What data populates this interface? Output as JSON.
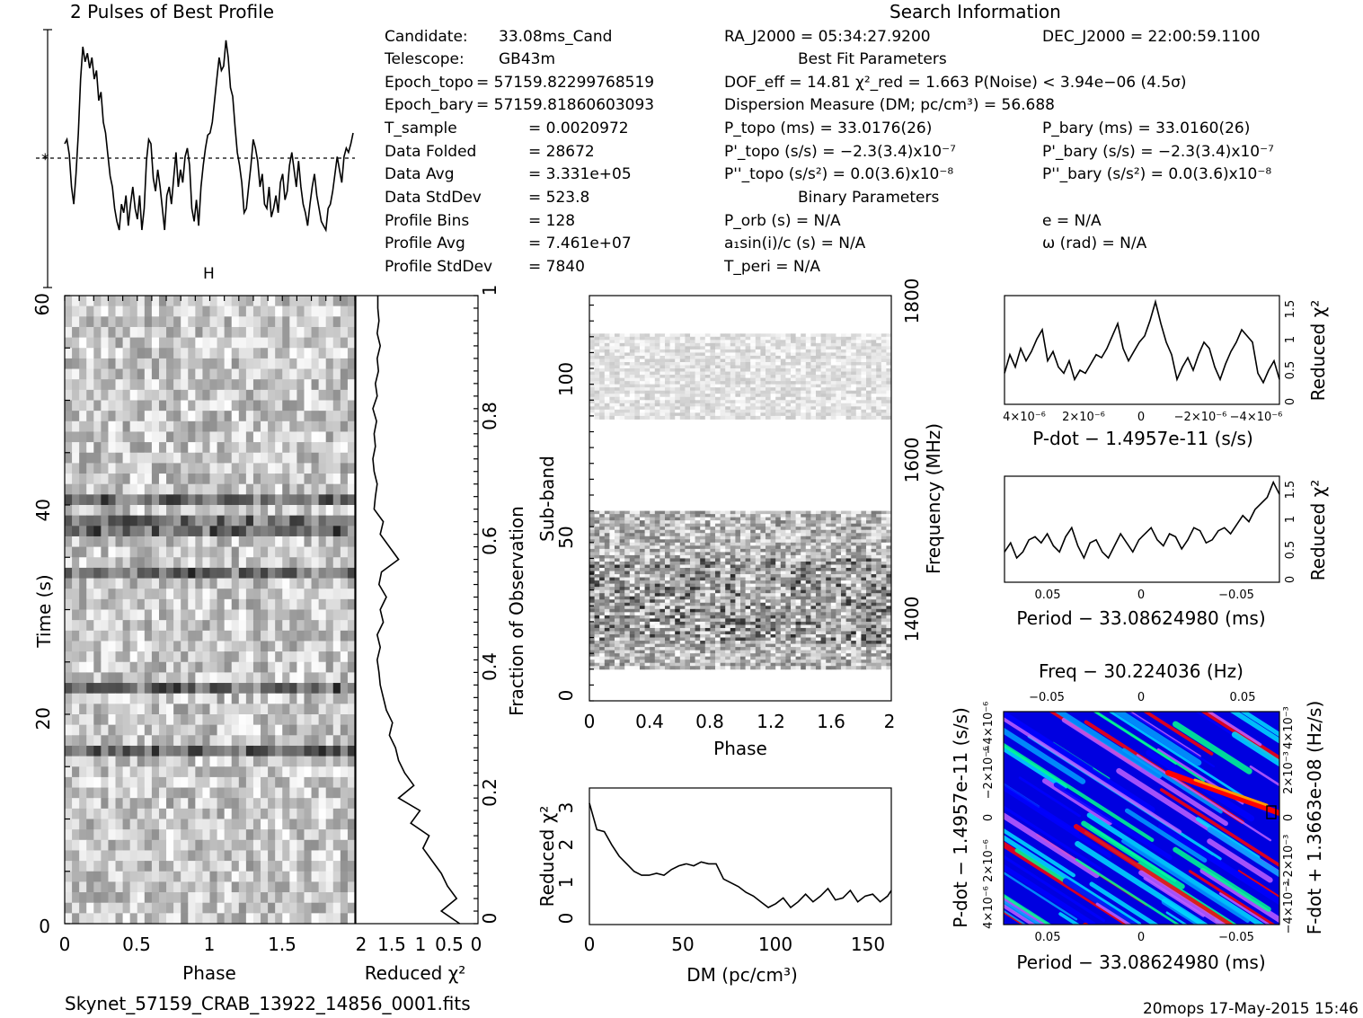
{
  "title": "2 Pulses of Best Profile",
  "search_title": "Search Information",
  "footer": {
    "filename": "Skynet_57159_CRAB_13922_14856_0001.fits",
    "stamp": "20mops 17-May-2015 15:46"
  },
  "info_col1": [
    {
      "k": "Candidate:",
      "v": "33.08ms_Cand"
    },
    {
      "k": "Telescope:",
      "v": "GB43m"
    },
    {
      "k": "Epoch_topo",
      "v": "= 57159.82299768519"
    },
    {
      "k": "Epoch_bary",
      "v": "= 57159.81860603093"
    },
    {
      "k": "T_sample",
      "v": "= 0.0020972"
    },
    {
      "k": "Data Folded",
      "v": "= 28672"
    },
    {
      "k": "Data Avg",
      "v": "= 3.331e+05"
    },
    {
      "k": "Data StdDev",
      "v": "= 523.8"
    },
    {
      "k": "Profile Bins",
      "v": "= 128"
    },
    {
      "k": "Profile Avg",
      "v": "= 7.461e+07"
    },
    {
      "k": "Profile StdDev",
      "v": "= 7840"
    }
  ],
  "info_col2": [
    "RA_J2000 = 05:34:27.9200",
    "Best Fit Parameters",
    "DOF_eff = 14.81  χ²_red = 1.663  P(Noise) < 3.94e−06  (4.5σ)",
    "Dispersion Measure (DM; pc/cm³) = 56.688",
    "P_topo (ms) = 33.0176(26)",
    "P'_topo (s/s) = −2.3(3.4)x10⁻⁷",
    "P''_topo (s/s²) = 0.0(3.6)x10⁻⁸",
    "Binary Parameters",
    "P_orb (s) = N/A",
    "a₁sin(i)/c (s) = N/A",
    "T_peri = N/A"
  ],
  "info_col3": [
    "DEC_J2000 = 22:00:59.1100",
    "P_bary (ms) = 33.0160(26)",
    "P'_bary (s/s) = −2.3(3.4)x10⁻⁷",
    "P''_bary (s/s²) = 0.0(3.6)x10⁻⁸",
    "e = N/A",
    "ω (rad) = N/A"
  ],
  "chart_data": [
    {
      "id": "profile",
      "type": "line",
      "title": "2 Pulses of Best Profile",
      "xlim": [
        0,
        2
      ],
      "y": [
        0.5,
        0.52,
        0.45,
        0.3,
        0.22,
        0.36,
        0.55,
        0.8,
        0.95,
        0.88,
        0.92,
        0.85,
        0.9,
        0.8,
        0.84,
        0.7,
        0.74,
        0.6,
        0.55,
        0.45,
        0.35,
        0.3,
        0.2,
        0.14,
        0.1,
        0.22,
        0.18,
        0.26,
        0.12,
        0.22,
        0.3,
        0.2,
        0.15,
        0.26,
        0.1,
        0.2,
        0.42,
        0.52,
        0.5,
        0.34,
        0.28,
        0.38,
        0.3,
        0.2,
        0.1,
        0.26,
        0.3,
        0.22,
        0.34,
        0.46,
        0.3,
        0.38,
        0.32,
        0.44,
        0.48,
        0.4,
        0.2,
        0.14,
        0.24,
        0.12,
        0.3,
        0.4,
        0.48,
        0.54,
        0.55,
        0.6,
        0.7,
        0.8,
        0.9,
        0.84,
        0.86,
        0.98,
        0.9,
        0.76,
        0.72,
        0.58,
        0.46,
        0.4,
        0.32,
        0.18,
        0.2,
        0.3,
        0.4,
        0.52,
        0.48,
        0.42,
        0.3,
        0.36,
        0.22,
        0.2,
        0.3,
        0.16,
        0.2,
        0.26,
        0.18,
        0.32,
        0.36,
        0.24,
        0.28,
        0.4,
        0.46,
        0.38,
        0.3,
        0.42,
        0.3,
        0.22,
        0.18,
        0.12,
        0.22,
        0.3,
        0.36,
        0.26,
        0.2,
        0.14,
        0.12,
        0.1,
        0.2,
        0.22,
        0.28,
        0.36,
        0.44,
        0.38,
        0.32,
        0.44,
        0.48,
        0.46,
        0.5,
        0.55
      ]
    },
    {
      "id": "time-phase",
      "type": "heatmap",
      "xlabel": "Phase",
      "ylabel": "Time (s)",
      "xlim": [
        0,
        2
      ],
      "ylim": [
        0,
        60
      ],
      "x_ticks": [
        "0",
        "0.5",
        "1",
        "1.5"
      ],
      "y_ticks": [
        "0",
        "20",
        "40",
        "60"
      ],
      "dark_rows_time_s": [
        22.7,
        33.4,
        38.0,
        40.5,
        16.5
      ]
    },
    {
      "id": "time-chi2",
      "type": "line",
      "xlabel": "Reduced χ²",
      "ylabel": "Fraction of Observation",
      "x_ticks": [
        "2",
        "1.5",
        "1",
        "0.5",
        "0"
      ],
      "y_ticks": [
        "0",
        "0.2",
        "0.4",
        "0.6",
        "0.8",
        "1"
      ],
      "xlim": [
        2,
        0
      ],
      "ylim": [
        0,
        1
      ],
      "frac": [
        0.0,
        0.02,
        0.04,
        0.06,
        0.08,
        0.1,
        0.12,
        0.14,
        0.16,
        0.18,
        0.2,
        0.22,
        0.24,
        0.26,
        0.28,
        0.3,
        0.32,
        0.34,
        0.36,
        0.38,
        0.4,
        0.42,
        0.44,
        0.46,
        0.48,
        0.5,
        0.52,
        0.54,
        0.56,
        0.58,
        0.6,
        0.62,
        0.64,
        0.66,
        0.68,
        0.7,
        0.72,
        0.74,
        0.76,
        0.78,
        0.8,
        0.82,
        0.84,
        0.86,
        0.88,
        0.9,
        0.92,
        0.94,
        0.96,
        0.98,
        1.0
      ],
      "chi2": [
        0.3,
        0.6,
        0.35,
        0.5,
        0.6,
        0.75,
        0.9,
        0.8,
        1.1,
        0.95,
        1.3,
        1.05,
        1.2,
        1.3,
        1.35,
        1.45,
        1.4,
        1.5,
        1.55,
        1.6,
        1.62,
        1.65,
        1.6,
        1.65,
        1.55,
        1.6,
        1.5,
        1.62,
        1.58,
        1.3,
        1.45,
        1.6,
        1.55,
        1.7,
        1.68,
        1.65,
        1.7,
        1.72,
        1.68,
        1.7,
        1.66,
        1.72,
        1.65,
        1.68,
        1.63,
        1.65,
        1.6,
        1.65,
        1.62,
        1.64,
        1.64
      ]
    },
    {
      "id": "subband-phase",
      "type": "heatmap",
      "xlabel": "Phase",
      "ylabel": "Sub-band",
      "y2label": "Frequency (MHz)",
      "x_ticks": [
        "0",
        "0.4",
        "0.8",
        "1.2",
        "1.6",
        "2"
      ],
      "y_ticks": [
        "0",
        "50",
        "100"
      ],
      "y2_ticks": [
        "1400",
        "1600",
        "1800"
      ],
      "xlim": [
        0,
        2
      ],
      "ylim": [
        0,
        128
      ],
      "active_bands": [
        [
          10,
          60
        ],
        [
          89,
          116
        ]
      ]
    },
    {
      "id": "dm-chi2",
      "type": "line",
      "xlabel": "DM (pc/cm³)",
      "ylabel": "Reduced χ²",
      "xlim": [
        0,
        162
      ],
      "ylim": [
        0,
        3.6
      ],
      "x_ticks": [
        "0",
        "50",
        "100",
        "150"
      ],
      "y_ticks": [
        "0",
        "1",
        "2",
        "3"
      ],
      "x": [
        0,
        4,
        8,
        12,
        16,
        20,
        24,
        28,
        32,
        36,
        40,
        44,
        48,
        52,
        56,
        60,
        64,
        68,
        72,
        76,
        80,
        84,
        88,
        92,
        96,
        100,
        104,
        108,
        112,
        116,
        120,
        124,
        128,
        132,
        136,
        140,
        144,
        148,
        152,
        156,
        160,
        162
      ],
      "y": [
        3.2,
        2.5,
        2.45,
        2.1,
        1.8,
        1.6,
        1.4,
        1.3,
        1.3,
        1.35,
        1.3,
        1.45,
        1.55,
        1.6,
        1.55,
        1.65,
        1.6,
        1.6,
        1.2,
        1.1,
        1.0,
        0.85,
        0.75,
        0.6,
        0.45,
        0.55,
        0.7,
        0.45,
        0.6,
        0.8,
        0.6,
        0.75,
        0.95,
        0.65,
        0.7,
        0.9,
        0.6,
        0.75,
        0.8,
        0.6,
        0.75,
        0.9
      ]
    },
    {
      "id": "pdot-chi2",
      "type": "line",
      "xlabel": "P-dot − 1.4957e-11 (s/s)",
      "ylabel": "Reduced χ²",
      "x_ticks": [
        "4×10⁻⁶",
        "2×10⁻⁶",
        "0",
        "−2×10⁻⁶",
        "−4×10⁻⁶"
      ],
      "y_ticks": [
        "0",
        "0.5",
        "1",
        "1.5"
      ],
      "ylim": [
        0,
        1.75
      ],
      "y": [
        0.5,
        0.8,
        0.6,
        0.9,
        0.7,
        0.85,
        1.05,
        1.2,
        0.7,
        0.85,
        0.6,
        0.5,
        0.7,
        0.4,
        0.55,
        0.5,
        0.65,
        0.8,
        0.75,
        0.9,
        1.1,
        1.3,
        0.9,
        0.7,
        0.85,
        1.0,
        1.1,
        1.35,
        1.65,
        1.3,
        1.0,
        0.8,
        0.4,
        0.6,
        0.75,
        0.55,
        0.8,
        1.0,
        0.9,
        0.6,
        0.4,
        0.65,
        0.85,
        1.0,
        1.2,
        1.1,
        1.0,
        0.5,
        0.35,
        0.55,
        0.7,
        0.4
      ]
    },
    {
      "id": "period-chi2",
      "type": "line",
      "xlabel": "Period − 33.08624980 (ms)",
      "ylabel": "Reduced χ²",
      "x_ticks": [
        "0.05",
        "0",
        "−0.05"
      ],
      "y_ticks": [
        "0",
        "0.5",
        "1",
        "1.5"
      ],
      "ylim": [
        0,
        1.75
      ],
      "y": [
        0.5,
        0.65,
        0.4,
        0.5,
        0.7,
        0.75,
        0.65,
        0.8,
        0.6,
        0.5,
        0.75,
        0.9,
        0.6,
        0.4,
        0.65,
        0.7,
        0.5,
        0.4,
        0.6,
        0.8,
        0.65,
        0.5,
        0.7,
        0.8,
        0.9,
        0.7,
        0.6,
        0.8,
        0.75,
        0.55,
        0.7,
        0.9,
        0.85,
        0.65,
        0.7,
        0.85,
        0.9,
        0.8,
        0.95,
        1.1,
        1.0,
        1.2,
        1.3,
        1.4,
        1.65,
        1.45
      ]
    },
    {
      "id": "pdot-period-map",
      "type": "heatmap",
      "title": "Freq − 30.224036 (Hz)",
      "xlabel": "Period − 33.08624980 (ms)",
      "ylabel": "P-dot − 1.4957e-11 (s/s)",
      "y2label": "F-dot + 1.3663e-08 (Hz/s)",
      "x_ticks": [
        "0.05",
        "0",
        "−0.05"
      ],
      "top_ticks": [
        "−0.05",
        "0",
        "0.05"
      ],
      "y_ticks": [
        "4×10⁻⁶",
        "2×10⁻⁶",
        "0",
        "−2×10⁻⁶",
        "−4×10⁻⁶"
      ],
      "y2_ticks": [
        "−4×10⁻³",
        "−2×10⁻³",
        "0",
        "2×10⁻³",
        "4×10⁻³"
      ],
      "colors": [
        "#0000ff",
        "#00a0ff",
        "#00e0ff",
        "#00ff90",
        "#ff0000",
        "#c060ff",
        "#000080"
      ]
    }
  ]
}
